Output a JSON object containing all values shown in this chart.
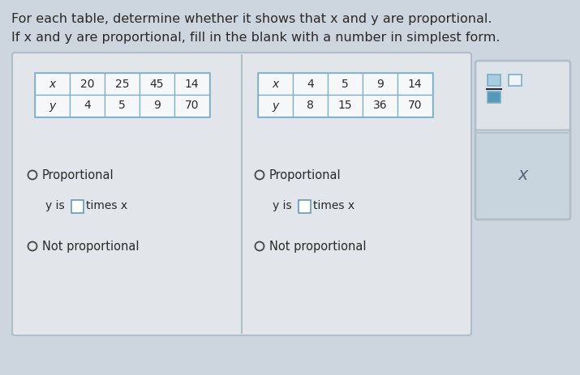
{
  "bg_color": "#cdd5de",
  "title_line1": "For each table, determine whether it shows that x and y are proportional.",
  "title_line2": "If x and y are proportional, fill in the blank with a number in simplest form.",
  "table1_row1": [
    "x",
    "20",
    "25",
    "45",
    "14"
  ],
  "table1_row2": [
    "y",
    "4",
    "5",
    "9",
    "70"
  ],
  "table2_row1": [
    "x",
    "4",
    "5",
    "9",
    "14"
  ],
  "table2_row2": [
    "y",
    "8",
    "15",
    "36",
    "70"
  ],
  "panel_bg": "#e2e6ea",
  "panel_border": "#b0bec8",
  "table_border": "#7aafc8",
  "cell_bg": "#f5f7f8",
  "text_dark": "#2a2a2a",
  "text_medium": "#3a3a3a",
  "radio_color": "#444444",
  "blank_box_border": "#6699bb",
  "right_panel_bg": "#dde3e9",
  "right_lower_bg": "#c8d4de",
  "frac_num_fill": "#5599bb",
  "frac_den_fill": "#5599bb",
  "x_color": "#556677"
}
